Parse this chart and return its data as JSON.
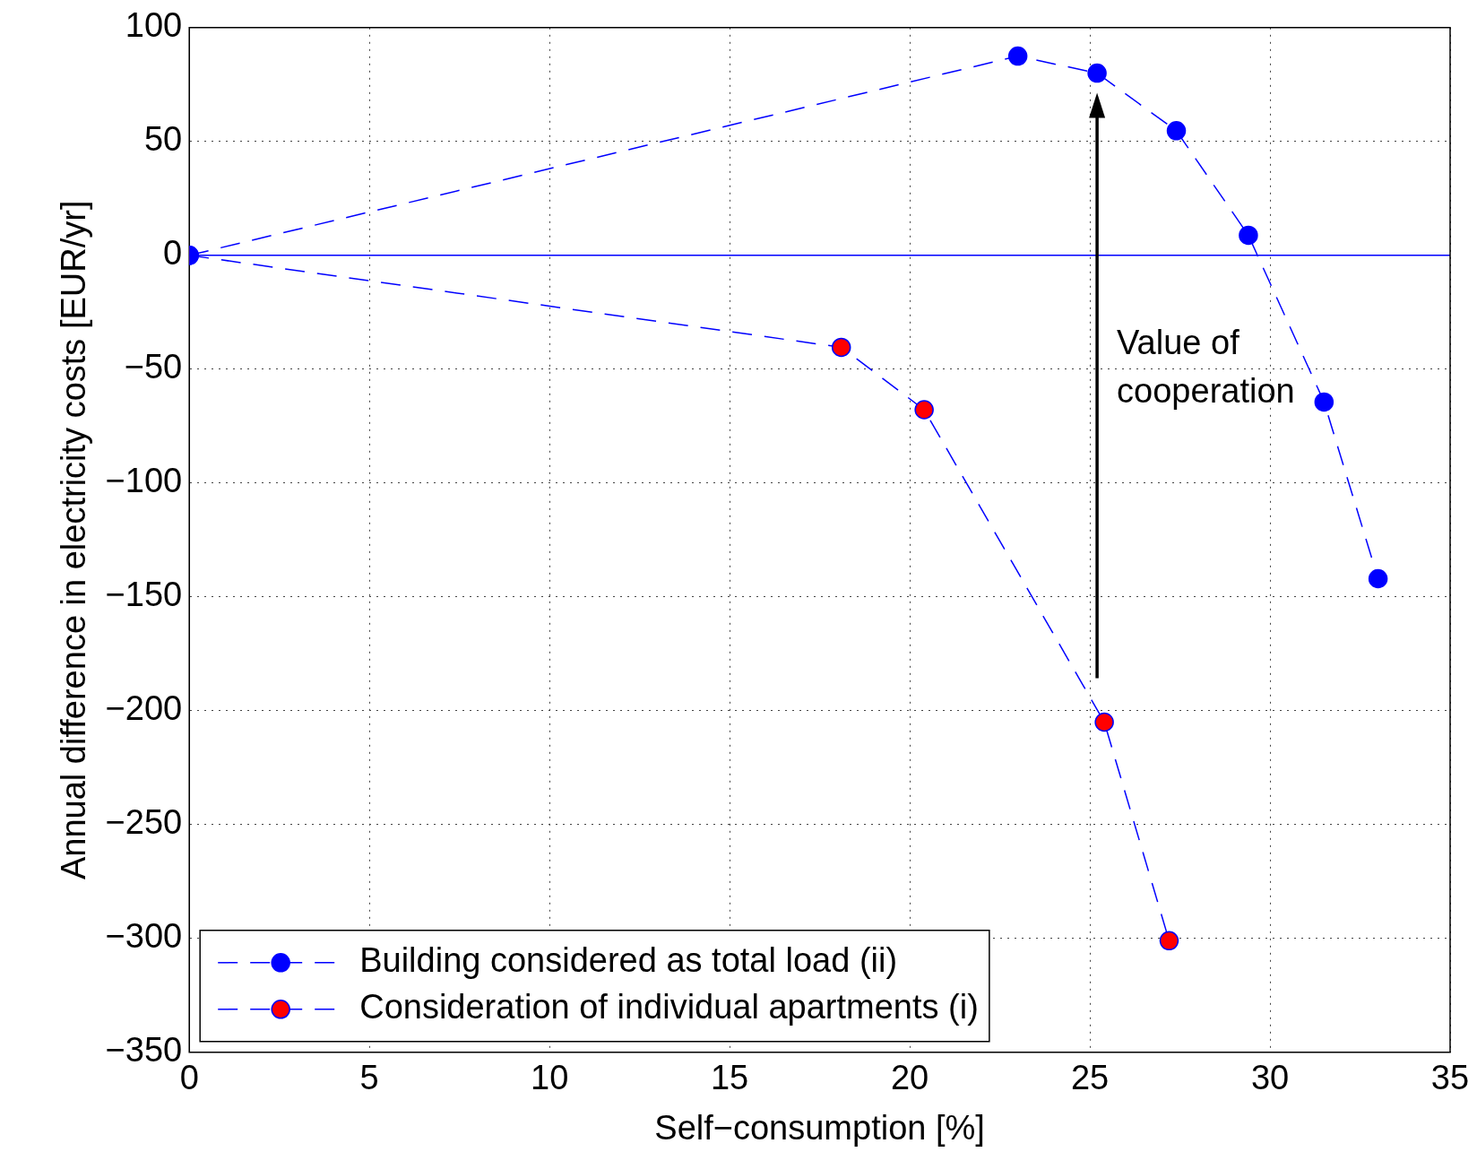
{
  "chart_data": {
    "type": "line",
    "xlabel": "Self−consumption [%]",
    "ylabel": "Annual difference in electricity costs [EUR/yr]",
    "xlim": [
      0,
      35
    ],
    "xticks": [
      0,
      5,
      10,
      15,
      20,
      25,
      30,
      35
    ],
    "ylim": [
      -350,
      100
    ],
    "yticks": [
      -350,
      -300,
      -250,
      -200,
      -150,
      -100,
      -50,
      0,
      50,
      100
    ],
    "grid": true,
    "legend": "bottom left",
    "marker": "circle",
    "line_style": "dashed",
    "series": [
      {
        "name": "Building considered as total load (ii)",
        "color": "#0000ff",
        "x": [
          0,
          23.0,
          25.2,
          27.4,
          29.4,
          31.5,
          33.0
        ],
        "values": [
          0,
          87.5,
          80,
          54.7,
          8.8,
          -64.4,
          -142
        ]
      },
      {
        "name": "Consideration of individual apartments (i)",
        "color": "#ff0000",
        "x": [
          0,
          18.1,
          20.4,
          25.4,
          27.2
        ],
        "values": [
          0,
          -40.4,
          -67.8,
          -205,
          -301
        ]
      }
    ],
    "ref_lines": [
      {
        "axis": "y",
        "value": 0,
        "color": "#0000ff",
        "line_style": "solid"
      }
    ],
    "annotations": [
      "Value of cooperation"
    ]
  }
}
